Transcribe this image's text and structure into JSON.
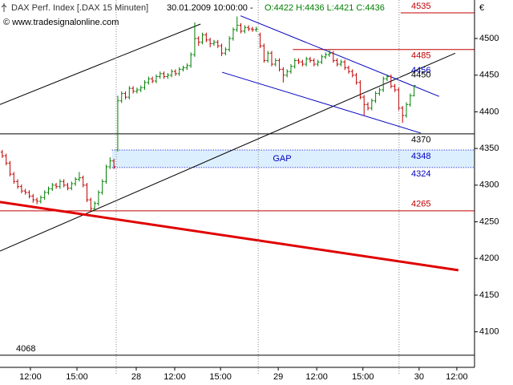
{
  "chart_data": {
    "type": "ohlc",
    "title": "DAX Perf. Index [.DAX  15 Minuten]",
    "datetime": "30.01.2009 10:00:00 -",
    "quote": "O:4422 H:4436 L:4421 C:4436",
    "source": "© www.tradesignalonline.com",
    "currency": "€",
    "up_color": "#008000",
    "down_color": "#c00000",
    "ylim": [
      4051.5,
      4552.5
    ],
    "yticks": [
      4100,
      4150,
      4200,
      4250,
      4300,
      4350,
      4400,
      4450,
      4500
    ],
    "xlim": [
      -0.6,
      122.7
    ],
    "xticks": [
      {
        "value": 7.3,
        "label": "12:00"
      },
      {
        "value": 19.4,
        "label": "15:00"
      },
      {
        "value": 34.8,
        "label": "28"
      },
      {
        "value": 44.8,
        "label": "12:00"
      },
      {
        "value": 56.7,
        "label": "15:00"
      },
      {
        "value": 71.7,
        "label": "29"
      },
      {
        "value": 81.7,
        "label": "12:00"
      },
      {
        "value": 93.7,
        "label": "15:00"
      },
      {
        "value": 108.3,
        "label": "30"
      },
      {
        "value": 118.1,
        "label": "12:00"
      }
    ],
    "separators": [
      29.6,
      66.5,
      103.1
    ],
    "ohlc": [
      [
        4345,
        4348,
        4337,
        4340
      ],
      [
        4340,
        4343,
        4327,
        4330
      ],
      [
        4330,
        4333,
        4312,
        4315
      ],
      [
        4315,
        4318,
        4302,
        4305
      ],
      [
        4305,
        4308,
        4295,
        4298
      ],
      [
        4298,
        4301,
        4289,
        4292
      ],
      [
        4292,
        4295,
        4287,
        4290
      ],
      [
        4290,
        4293,
        4282,
        4285
      ],
      [
        4285,
        4288,
        4276,
        4280
      ],
      [
        4280,
        4283,
        4274,
        4278
      ],
      [
        4278,
        4286,
        4275,
        4283
      ],
      [
        4283,
        4293,
        4280,
        4290
      ],
      [
        4290,
        4298,
        4287,
        4295
      ],
      [
        4295,
        4303,
        4292,
        4300
      ],
      [
        4300,
        4303,
        4295,
        4298
      ],
      [
        4298,
        4308,
        4295,
        4305
      ],
      [
        4305,
        4308,
        4297,
        4300
      ],
      [
        4300,
        4303,
        4293,
        4296
      ],
      [
        4296,
        4305,
        4293,
        4302
      ],
      [
        4302,
        4311,
        4299,
        4308
      ],
      [
        4308,
        4318,
        4305,
        4310
      ],
      [
        4310,
        4313,
        4297,
        4300
      ],
      [
        4300,
        4303,
        4277,
        4280
      ],
      [
        4280,
        4283,
        4264,
        4268
      ],
      [
        4268,
        4278,
        4265,
        4275
      ],
      [
        4275,
        4293,
        4272,
        4290
      ],
      [
        4290,
        4308,
        4287,
        4305
      ],
      [
        4305,
        4328,
        4302,
        4325
      ],
      [
        4325,
        4338,
        4322,
        4333
      ],
      [
        4333,
        4336,
        4322,
        4325
      ],
      [
        4348,
        4422,
        4346,
        4415
      ],
      [
        4415,
        4428,
        4412,
        4425
      ],
      [
        4425,
        4428,
        4417,
        4420
      ],
      [
        4420,
        4435,
        4417,
        4432
      ],
      [
        4432,
        4435,
        4425,
        4428
      ],
      [
        4428,
        4433,
        4425,
        4430
      ],
      [
        4430,
        4436,
        4427,
        4433
      ],
      [
        4433,
        4443,
        4430,
        4440
      ],
      [
        4440,
        4448,
        4437,
        4445
      ],
      [
        4445,
        4448,
        4439,
        4442
      ],
      [
        4442,
        4451,
        4439,
        4448
      ],
      [
        4448,
        4455,
        4445,
        4452
      ],
      [
        4452,
        4455,
        4445,
        4448
      ],
      [
        4448,
        4453,
        4445,
        4450
      ],
      [
        4450,
        4458,
        4447,
        4455
      ],
      [
        4455,
        4458,
        4449,
        4452
      ],
      [
        4452,
        4461,
        4449,
        4458
      ],
      [
        4458,
        4463,
        4455,
        4460
      ],
      [
        4460,
        4466,
        4457,
        4463
      ],
      [
        4463,
        4481,
        4460,
        4478
      ],
      [
        4478,
        4522,
        4475,
        4500
      ],
      [
        4500,
        4503,
        4490,
        4495
      ],
      [
        4495,
        4508,
        4492,
        4505
      ],
      [
        4505,
        4508,
        4495,
        4498
      ],
      [
        4498,
        4501,
        4488,
        4493
      ],
      [
        4493,
        4498,
        4490,
        4495
      ],
      [
        4495,
        4498,
        4487,
        4490
      ],
      [
        4490,
        4493,
        4476,
        4480
      ],
      [
        4480,
        4488,
        4477,
        4485
      ],
      [
        4485,
        4503,
        4482,
        4500
      ],
      [
        4500,
        4515,
        4497,
        4512
      ],
      [
        4512,
        4530,
        4509,
        4518
      ],
      [
        4518,
        4521,
        4507,
        4510
      ],
      [
        4510,
        4518,
        4507,
        4515
      ],
      [
        4515,
        4518,
        4510,
        4513
      ],
      [
        4513,
        4516,
        4509,
        4512
      ],
      [
        4512,
        4516,
        4509,
        4513
      ],
      [
        4505,
        4508,
        4487,
        4490
      ],
      [
        4490,
        4493,
        4467,
        4470
      ],
      [
        4470,
        4483,
        4467,
        4480
      ],
      [
        4480,
        4483,
        4462,
        4465
      ],
      [
        4465,
        4473,
        4462,
        4470
      ],
      [
        4470,
        4473,
        4455,
        4458
      ],
      [
        4458,
        4461,
        4440,
        4450
      ],
      [
        4450,
        4458,
        4447,
        4455
      ],
      [
        4455,
        4465,
        4452,
        4462
      ],
      [
        4462,
        4473,
        4459,
        4470
      ],
      [
        4470,
        4473,
        4465,
        4468
      ],
      [
        4468,
        4471,
        4462,
        4465
      ],
      [
        4465,
        4475,
        4462,
        4472
      ],
      [
        4472,
        4475,
        4467,
        4470
      ],
      [
        4470,
        4473,
        4462,
        4465
      ],
      [
        4465,
        4471,
        4462,
        4468
      ],
      [
        4468,
        4478,
        4465,
        4475
      ],
      [
        4475,
        4481,
        4472,
        4478
      ],
      [
        4478,
        4484,
        4475,
        4480
      ],
      [
        4480,
        4483,
        4467,
        4470
      ],
      [
        4470,
        4473,
        4462,
        4465
      ],
      [
        4465,
        4471,
        4462,
        4468
      ],
      [
        4468,
        4471,
        4457,
        4460
      ],
      [
        4460,
        4463,
        4452,
        4455
      ],
      [
        4455,
        4458,
        4447,
        4450
      ],
      [
        4450,
        4453,
        4437,
        4440
      ],
      [
        4440,
        4443,
        4417,
        4420
      ],
      [
        4420,
        4423,
        4395,
        4410
      ],
      [
        4410,
        4413,
        4402,
        4405
      ],
      [
        4405,
        4418,
        4402,
        4415
      ],
      [
        4415,
        4428,
        4412,
        4425
      ],
      [
        4425,
        4433,
        4422,
        4430
      ],
      [
        4430,
        4448,
        4427,
        4445
      ],
      [
        4445,
        4451,
        4442,
        4448
      ],
      [
        4448,
        4451,
        4432,
        4435
      ],
      [
        4435,
        4438,
        4427,
        4430
      ],
      [
        4430,
        4433,
        4402,
        4405
      ],
      [
        4405,
        4408,
        4385,
        4395
      ],
      [
        4395,
        4413,
        4392,
        4410
      ],
      [
        4410,
        4425,
        4407,
        4422
      ],
      [
        4422,
        4436,
        4421,
        4436
      ]
    ],
    "hlines": [
      {
        "value": 4535,
        "from": 103.5,
        "color": "#c00000"
      },
      {
        "value": 4485,
        "from": 75.5,
        "color": "#c00000"
      },
      {
        "value": 4370,
        "from": -0.6,
        "color": "#000000"
      },
      {
        "value": 4348,
        "from": 28.5,
        "color": "#0000c0"
      },
      {
        "value": 4324,
        "from": 28.5,
        "color": "#0000c0"
      },
      {
        "value": 4265,
        "from": -0.6,
        "color": "#c00000"
      },
      {
        "value": 4068,
        "from": -0.6,
        "color": "#000000"
      }
    ],
    "gap": {
      "label": "GAP",
      "from": 28.5,
      "top": 4348,
      "bottom": 4324,
      "color": "#dcefff"
    },
    "labels": [
      {
        "value": 4456,
        "color": "#0000c0"
      },
      {
        "value": 4450,
        "color": "#000000"
      }
    ],
    "trendlines": [
      {
        "x": [
          -0.6,
          51.5
        ],
        "values": [
          4410,
          4519.7
        ],
        "color": "#000000",
        "width": 1
      },
      {
        "x": [
          -0.6,
          117.7
        ],
        "values": [
          4210,
          4480
        ],
        "color": "#000000",
        "width": 1
      },
      {
        "x": [
          61.9,
          113.5
        ],
        "values": [
          4531,
          4421
        ],
        "color": "#0000c0",
        "width": 1
      },
      {
        "x": [
          57.1,
          108.75
        ],
        "values": [
          4454,
          4371
        ],
        "color": "#0000c0",
        "width": 1
      },
      {
        "x": [
          -0.6,
          118.5
        ],
        "values": [
          4277,
          4184
        ],
        "color": "#e00000",
        "width": 3
      }
    ]
  }
}
